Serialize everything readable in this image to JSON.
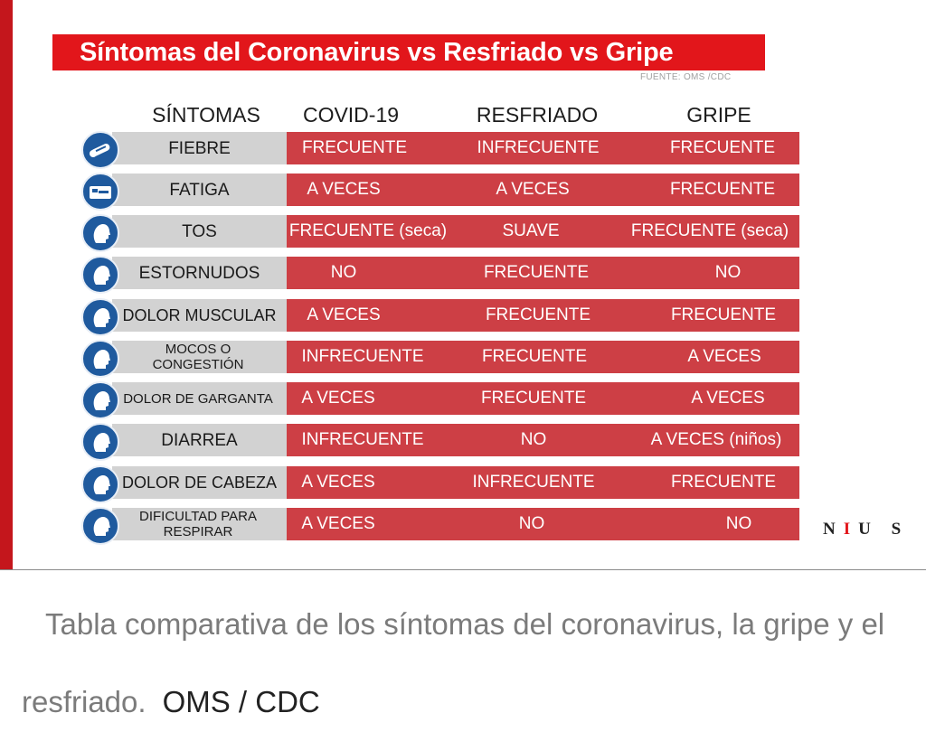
{
  "title": "Síntomas del Coronavirus vs Resfriado vs Gripe",
  "source": "FUENTE: OMS /CDC",
  "headers": {
    "symptoms": "SÍNTOMAS",
    "covid": "COVID-19",
    "cold": "RESFRIADO",
    "flu": "GRIPE"
  },
  "rows": [
    {
      "symptom": "FIEBRE",
      "icon": "thermometer-icon",
      "covid": "FRECUENTE",
      "cold": "INFRECUENTE",
      "flu": "FRECUENTE"
    },
    {
      "symptom": "FATIGA",
      "icon": "bed-icon",
      "covid": "A VECES",
      "cold": "A VECES",
      "flu": "FRECUENTE"
    },
    {
      "symptom": "TOS",
      "icon": "cough-head-icon",
      "covid": "FRECUENTE (seca)",
      "cold": "SUAVE",
      "flu": "FRECUENTE (seca)"
    },
    {
      "symptom": "ESTORNUDOS",
      "icon": "sneeze-head-icon",
      "covid": "NO",
      "cold": "FRECUENTE",
      "flu": "NO"
    },
    {
      "symptom": "DOLOR MUSCULAR",
      "icon": "muscle-pain-icon",
      "covid": "A VECES",
      "cold": "FRECUENTE",
      "flu": "FRECUENTE"
    },
    {
      "symptom": "MOCOS O CONGESTIÓN",
      "icon": "congestion-head-icon",
      "covid": "INFRECUENTE",
      "cold": "FRECUENTE",
      "flu": "A VECES"
    },
    {
      "symptom": "DOLOR DE GARGANTA",
      "icon": "sore-throat-icon",
      "covid": "A VECES",
      "cold": "FRECUENTE",
      "flu": "A VECES"
    },
    {
      "symptom": "DIARREA",
      "icon": "toilet-icon",
      "covid": "INFRECUENTE",
      "cold": "NO",
      "flu": "A VECES (niños)"
    },
    {
      "symptom": "DOLOR DE CABEZA",
      "icon": "headache-icon",
      "covid": "A VECES",
      "cold": "INFRECUENTE",
      "flu": "FRECUENTE"
    },
    {
      "symptom": "DIFICULTAD PARA RESPIRAR",
      "icon": "breathing-head-icon",
      "covid": "A VECES",
      "cold": "NO",
      "flu": "NO"
    }
  ],
  "brand": {
    "part1": "N",
    "part2": "I",
    "part3": "U S"
  },
  "caption": {
    "text": "Tabla comparativa de los síntomas del coronavirus, la gripe y el resfriado.",
    "credit": "OMS / CDC"
  },
  "colors": {
    "banner": "#e2161b",
    "accent_bar": "#c4161c",
    "symptom_cell": "#d2d2d2",
    "data_cell": "#cd3f45",
    "icon_circle": "#1f5a9e"
  }
}
